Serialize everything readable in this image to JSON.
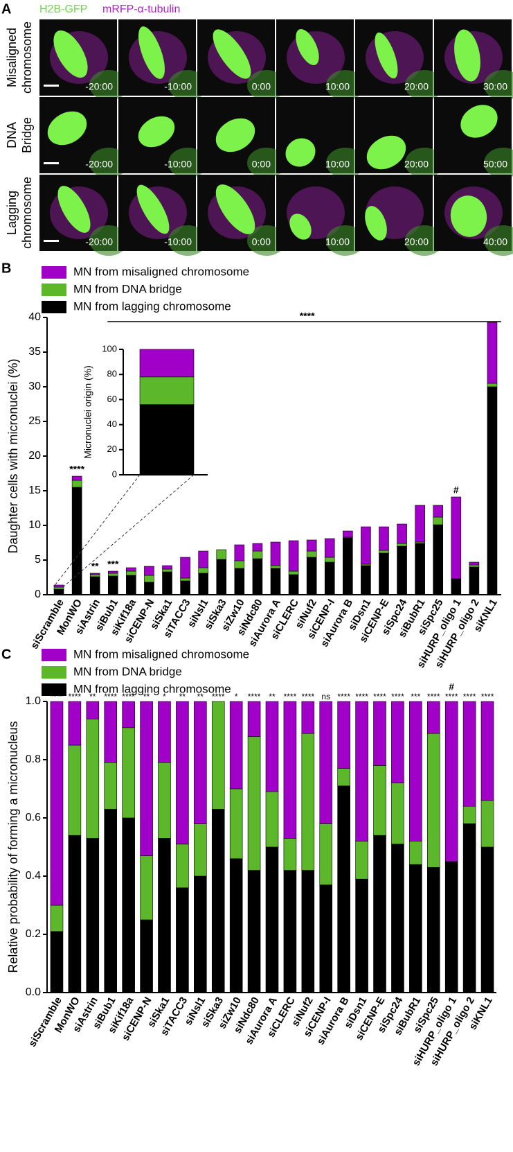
{
  "panel_a": {
    "label": "A",
    "channels": [
      {
        "text": "H2B-GFP",
        "color": "#6fd64a"
      },
      {
        "text": "mRFP-α-tubulin",
        "color": "#b020c8"
      }
    ],
    "rows": [
      {
        "label": [
          "Misaligned",
          "chromosome"
        ],
        "times": [
          "-20:00",
          "-10:00",
          "0:00",
          "10:00",
          "20:00",
          "30:00"
        ]
      },
      {
        "label": [
          "DNA",
          "Bridge"
        ],
        "times": [
          "-20:00",
          "-10:00",
          "0:00",
          "10:00",
          "20:00",
          "50:00"
        ]
      },
      {
        "label": [
          "Lagging",
          "chromosome"
        ],
        "times": [
          "-20:00",
          "-10:00",
          "0:00",
          "10:00",
          "20:00",
          "40:00"
        ]
      }
    ]
  },
  "chart_data": [
    {
      "type": "bar",
      "stacked": true,
      "panel_label": "B",
      "ylabel": "Daughter cells with micronuclei (%)",
      "categories": [
        "siScramble",
        "MonWO",
        "siAstrin",
        "siBub1",
        "siKif18a",
        "siCENP-N",
        "siSka1",
        "siTACC3",
        "siNsl1",
        "siSka3",
        "siZw10",
        "siNdc80",
        "siAurora A",
        "siCLERC",
        "siNuf2",
        "siCENP-I",
        "siAurora B",
        "siDsn1",
        "siCENP-E",
        "siSpc24",
        "siBubR1",
        "siSpc25",
        "siHURP_oligo 1",
        "siHURP_oligo 2",
        "siKNL1"
      ],
      "series": [
        {
          "name": "MN from misaligned chromosome",
          "color": "#a000c8",
          "values": [
            0.3,
            0.6,
            0.2,
            0.3,
            0.5,
            1.3,
            0.5,
            3.0,
            2.4,
            0,
            2.3,
            1.1,
            3.4,
            4.4,
            1.6,
            2.7,
            0.9,
            5.4,
            3.4,
            2.8,
            5.3,
            1.7,
            11.8,
            0.4,
            8.8
          ]
        },
        {
          "name": "MN from DNA bridge",
          "color": "#5cb82a",
          "values": [
            0.3,
            1.0,
            0.3,
            0.4,
            0.6,
            1.0,
            0.4,
            0.4,
            0.8,
            1.4,
            1.1,
            1.1,
            0.4,
            0.5,
            0.9,
            0.7,
            0.1,
            0.2,
            0.4,
            0.4,
            0.2,
            1.1,
            0,
            0.3,
            0.5
          ]
        },
        {
          "name": "MN from lagging chromosome",
          "color": "#000000",
          "values": [
            0.8,
            15.5,
            2.6,
            2.7,
            2.8,
            1.8,
            3.3,
            2.0,
            3.1,
            5.1,
            3.8,
            5.2,
            3.8,
            2.9,
            5.4,
            4.7,
            8.2,
            4.2,
            6.0,
            7.0,
            7.4,
            10.1,
            2.3,
            4.0,
            30.0
          ]
        }
      ],
      "ylim": [
        0,
        40
      ],
      "yticks": [
        0,
        5,
        10,
        15,
        20,
        25,
        30,
        35,
        40
      ],
      "bar_annotations": [
        null,
        "****",
        "**",
        "***",
        null,
        null,
        null,
        null,
        null,
        null,
        null,
        null,
        null,
        null,
        null,
        null,
        null,
        null,
        null,
        null,
        null,
        null,
        "#",
        null,
        null
      ],
      "bracket_annotation": "****"
    },
    {
      "type": "bar",
      "stacked": true,
      "ylabel": "Micronuclei origin (%)",
      "categories": [
        null
      ],
      "series": [
        {
          "color": "#a000c8",
          "values": [
            22
          ]
        },
        {
          "color": "#5cb82a",
          "values": [
            22
          ]
        },
        {
          "color": "#000000",
          "values": [
            56
          ]
        }
      ],
      "ylim": [
        0,
        100
      ],
      "yticks": [
        0,
        20,
        40,
        60,
        80,
        100
      ]
    },
    {
      "type": "bar",
      "stacked": true,
      "panel_label": "C",
      "ylabel": "Relative probability of forming a micronucleus",
      "categories": [
        "siScramble",
        "MonWO",
        "siAstrin",
        "siBub1",
        "siKif18a",
        "siCENP-N",
        "siSka1",
        "siTACC3",
        "siNsl1",
        "siSka3",
        "siZw10",
        "siNdc80",
        "siAurora A",
        "siCLERC",
        "siNuf2",
        "siCENP-I",
        "siAurora B",
        "siDsn1",
        "siCENP-E",
        "siSpc24",
        "siBubR1",
        "siSpc25",
        "siHURP_oligo 1",
        "siHURP_oligo 2",
        "siKNL1"
      ],
      "series": [
        {
          "name": "MN from misaligned chromosome",
          "color": "#a000c8",
          "values": [
            0.7,
            0.15,
            0.06,
            0.21,
            0.09,
            0.53,
            0.21,
            0.49,
            0.42,
            0,
            0.3,
            0.12,
            0.31,
            0.47,
            0.11,
            0.42,
            0.23,
            0.48,
            0.22,
            0.28,
            0.48,
            0.11,
            0.55,
            0.36,
            0.34
          ]
        },
        {
          "name": "MN from DNA bridge",
          "color": "#5cb82a",
          "values": [
            0.09,
            0.31,
            0.41,
            0.16,
            0.31,
            0.22,
            0.26,
            0.15,
            0.18,
            0.37,
            0.24,
            0.46,
            0.19,
            0.11,
            0.47,
            0.21,
            0.06,
            0.13,
            0.24,
            0.21,
            0.08,
            0.46,
            0,
            0.06,
            0.16
          ]
        },
        {
          "name": "MN from lagging chromosome",
          "color": "#000000",
          "values": [
            0.21,
            0.54,
            0.53,
            0.63,
            0.6,
            0.25,
            0.53,
            0.36,
            0.4,
            0.63,
            0.46,
            0.42,
            0.5,
            0.42,
            0.42,
            0.37,
            0.71,
            0.39,
            0.54,
            0.51,
            0.44,
            0.43,
            0.45,
            0.58,
            0.5
          ]
        }
      ],
      "ylim": [
        0,
        1
      ],
      "yticks": [
        {
          "value": 0,
          "label": "0.0"
        },
        0.2,
        0.4,
        0.6,
        0.8,
        {
          "value": 1,
          "label": "1.0"
        }
      ],
      "significance": [
        "****",
        "****",
        "**",
        "****",
        "****",
        "**",
        "*",
        "**",
        "**",
        "****",
        "*",
        "****",
        "**",
        "****",
        "****",
        "ns",
        "****",
        "****",
        "****",
        "****",
        "***",
        "****",
        "****",
        "****",
        "****"
      ],
      "bar_annotations": [
        null,
        null,
        null,
        null,
        null,
        null,
        null,
        null,
        null,
        null,
        null,
        null,
        null,
        null,
        null,
        null,
        null,
        null,
        null,
        null,
        null,
        null,
        "#",
        null,
        null
      ]
    }
  ]
}
